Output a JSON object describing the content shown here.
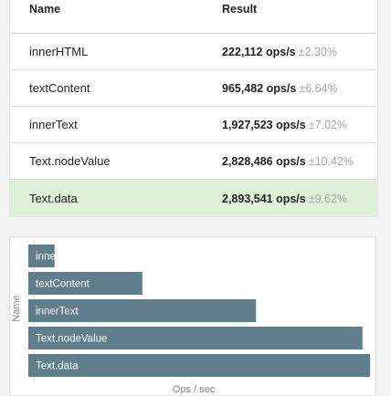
{
  "table": {
    "headers": {
      "name": "Name",
      "result": "Result"
    },
    "rows": [
      {
        "name": "innerHTML",
        "ops": "222,112 ops/s",
        "error": "±2.30%"
      },
      {
        "name": "textContent",
        "ops": "965,482 ops/s",
        "error": "±6.64%"
      },
      {
        "name": "innerText",
        "ops": "1,927,523 ops/s",
        "error": "±7.02%"
      },
      {
        "name": "Text.nodeValue",
        "ops": "2,828,486 ops/s",
        "error": "±10.42%"
      },
      {
        "name": "Text.data",
        "ops": "2,893,541 ops/s",
        "error": "±9.62%",
        "winner": true
      }
    ]
  },
  "colors": {
    "bar": "#607d8b",
    "winner_row": "#dff0d8"
  },
  "chart_data": {
    "type": "bar",
    "orientation": "horizontal",
    "categories": [
      "innerHTML",
      "textContent",
      "innerText",
      "Text.nodeValue",
      "Text.data"
    ],
    "values": [
      222112,
      965482,
      1927523,
      2828486,
      2893541
    ],
    "xlabel": "Ops / sec",
    "ylabel": "Name",
    "xlim": [
      0,
      2900000
    ]
  }
}
